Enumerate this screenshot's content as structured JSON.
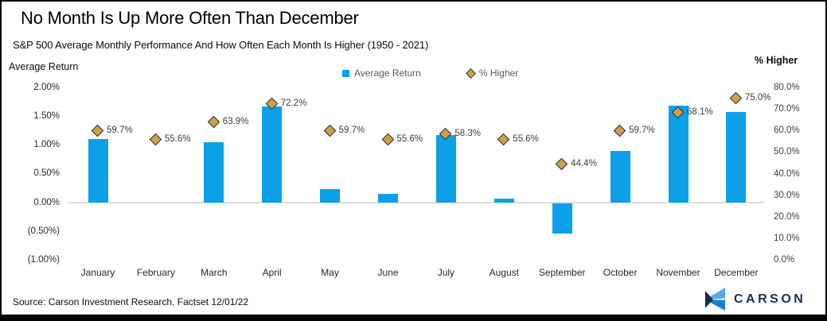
{
  "header": {
    "title": "No Month Is Up More Often Than December",
    "subtitle": "S&P 500 Average Monthly Performance And How Often Each Month Is Higher (1950 - 2021)"
  },
  "axes": {
    "left_title": "Average Return",
    "right_title": "% Higher",
    "left_ticks": [
      "2.00%",
      "1.50%",
      "1.00%",
      "0.50%",
      "0.00%",
      "(0.50%)",
      "(1.00%)"
    ],
    "right_ticks": [
      "80.0%",
      "70.0%",
      "60.0%",
      "50.0%",
      "40.0%",
      "30.0%",
      "20.0%",
      "10.0%",
      "0.0%"
    ]
  },
  "legend": {
    "bar_label": "Average Return",
    "point_label": "% Higher"
  },
  "footer": {
    "source": "Source: Carson Investment Research, Factset 12/01/22",
    "logo_text": "CARSON"
  },
  "colors": {
    "bar": "#0CA0E9",
    "diamond_fill": "#C9A24B",
    "diamond_border": "#2b2b2b",
    "logo_navy": "#16324F",
    "logo_light_blue": "#54A9E6",
    "logo_mid_blue": "#1A7FD6"
  },
  "chart_data": {
    "type": "bar",
    "subtype": "combo-bar-with-point-markers",
    "title": "No Month Is Up More Often Than December",
    "subtitle": "S&P 500 Average Monthly Performance And How Often Each Month Is Higher (1950 - 2021)",
    "categories": [
      "January",
      "February",
      "March",
      "April",
      "May",
      "June",
      "July",
      "August",
      "September",
      "October",
      "November",
      "December"
    ],
    "series": [
      {
        "name": "Average Return",
        "type": "bar",
        "axis": "left",
        "unit": "%",
        "values": [
          1.1,
          0.0,
          1.05,
          1.68,
          0.24,
          0.15,
          1.17,
          0.07,
          -0.53,
          0.9,
          1.69,
          1.57
        ]
      },
      {
        "name": "% Higher",
        "type": "scatter",
        "axis": "right",
        "unit": "%",
        "values": [
          59.7,
          55.6,
          63.9,
          72.2,
          59.7,
          55.6,
          58.3,
          55.6,
          44.4,
          59.7,
          68.1,
          75.0
        ],
        "labels": [
          "59.7%",
          "55.6%",
          "63.9%",
          "72.2%",
          "59.7%",
          "55.6%",
          "58.3%",
          "55.6%",
          "44.4%",
          "59.7%",
          "68.1%",
          "75.0%"
        ]
      }
    ],
    "left_axis": {
      "label": "Average Return",
      "min": -1.0,
      "max": 2.0,
      "tick_step": 0.5
    },
    "right_axis": {
      "label": "% Higher",
      "min": 0.0,
      "max": 80.0,
      "tick_step": 10.0
    },
    "grid": false,
    "legend_position": "top-center"
  }
}
